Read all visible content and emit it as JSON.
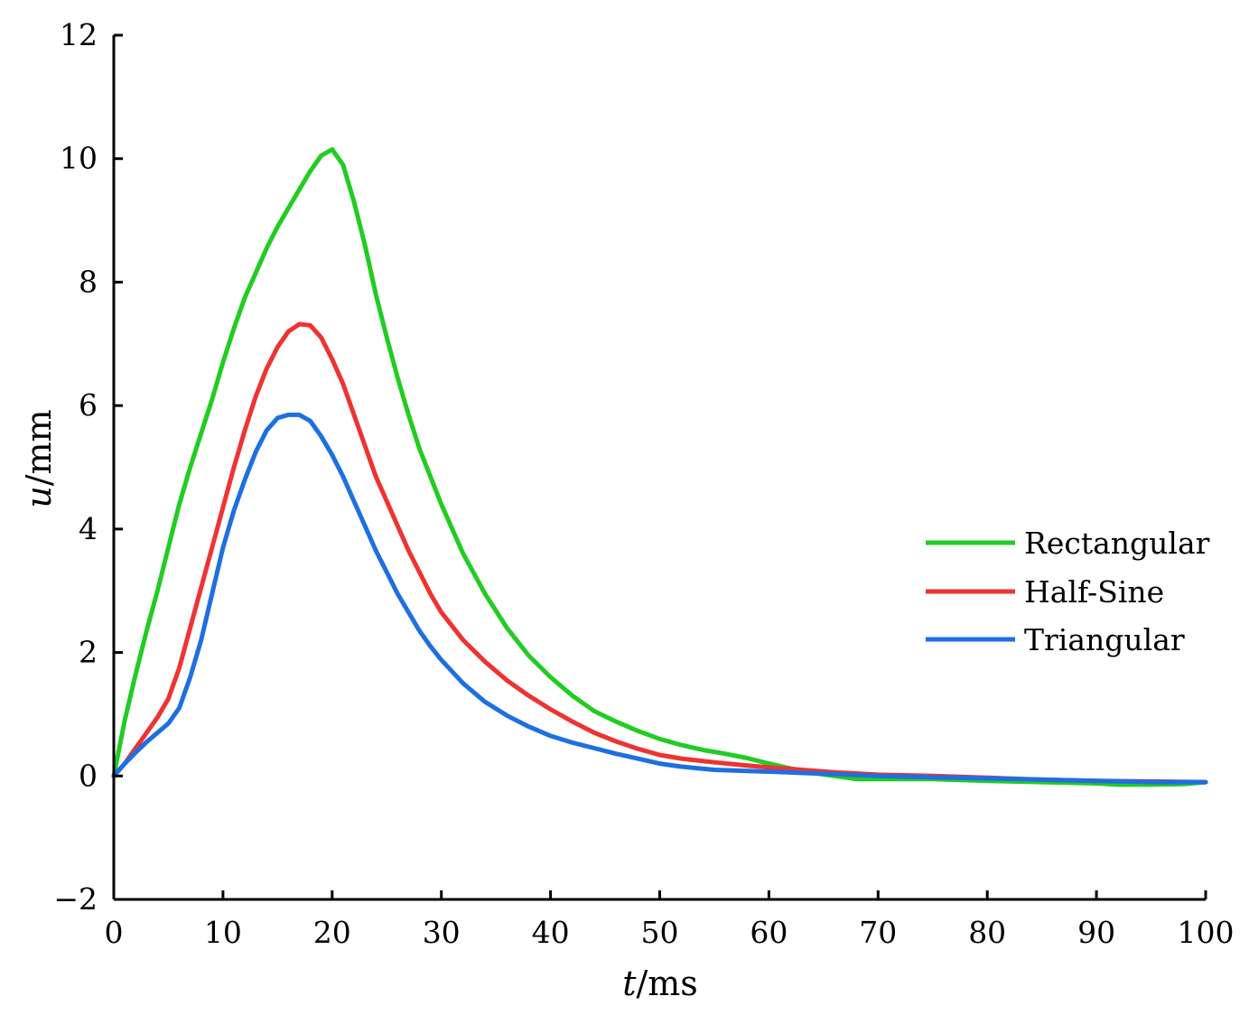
{
  "chart_data": {
    "type": "line",
    "title": "",
    "xlabel": {
      "var": "t",
      "unit": "/ms"
    },
    "ylabel": {
      "var": "u",
      "unit": "/mm"
    },
    "xlim": [
      0,
      100
    ],
    "ylim": [
      -2,
      12
    ],
    "xticks": [
      0,
      10,
      20,
      30,
      40,
      50,
      60,
      70,
      80,
      90,
      100
    ],
    "yticks": [
      -2,
      0,
      2,
      4,
      6,
      8,
      10,
      12
    ],
    "ytick_labels": [
      "−2",
      "0",
      "2",
      "4",
      "6",
      "8",
      "10",
      "12"
    ],
    "grid": false,
    "legend_position": "right",
    "series": [
      {
        "name": "Rectangular",
        "color": "#22cc22",
        "x": [
          0,
          1,
          2,
          3,
          4,
          5,
          6,
          7,
          8,
          9,
          10,
          11,
          12,
          13,
          14,
          15,
          16,
          17,
          18,
          19,
          20,
          21,
          22,
          23,
          24,
          25,
          26,
          27,
          28,
          29,
          30,
          32,
          34,
          36,
          38,
          40,
          42,
          44,
          46,
          48,
          50,
          52,
          54,
          56,
          58,
          60,
          62,
          64,
          66,
          68,
          70,
          75,
          80,
          85,
          90,
          92,
          95,
          98,
          100
        ],
        "y": [
          0,
          0.9,
          1.65,
          2.35,
          3.0,
          3.7,
          4.4,
          5.0,
          5.55,
          6.1,
          6.7,
          7.25,
          7.75,
          8.15,
          8.55,
          8.9,
          9.2,
          9.5,
          9.8,
          10.05,
          10.15,
          9.9,
          9.3,
          8.6,
          7.8,
          7.1,
          6.45,
          5.85,
          5.3,
          4.85,
          4.4,
          3.6,
          2.95,
          2.4,
          1.95,
          1.6,
          1.3,
          1.05,
          0.88,
          0.73,
          0.6,
          0.5,
          0.42,
          0.36,
          0.29,
          0.2,
          0.12,
          0.05,
          0.0,
          -0.05,
          -0.05,
          -0.05,
          -0.08,
          -0.1,
          -0.12,
          -0.14,
          -0.14,
          -0.13,
          -0.1
        ]
      },
      {
        "name": "Half-Sine",
        "color": "#ee3333",
        "x": [
          0,
          1,
          2,
          3,
          4,
          5,
          6,
          7,
          8,
          9,
          10,
          11,
          12,
          13,
          14,
          15,
          16,
          17,
          18,
          19,
          20,
          21,
          22,
          23,
          24,
          25,
          26,
          27,
          28,
          29,
          30,
          32,
          34,
          36,
          38,
          40,
          42,
          44,
          46,
          48,
          50,
          52,
          55,
          58,
          60,
          63,
          66,
          70,
          75,
          80,
          85,
          90,
          95,
          100
        ],
        "y": [
          0,
          0.2,
          0.45,
          0.7,
          0.95,
          1.25,
          1.75,
          2.4,
          3.05,
          3.7,
          4.35,
          5.0,
          5.6,
          6.15,
          6.6,
          6.95,
          7.2,
          7.32,
          7.3,
          7.1,
          6.75,
          6.35,
          5.85,
          5.35,
          4.85,
          4.45,
          4.05,
          3.65,
          3.3,
          2.95,
          2.65,
          2.2,
          1.85,
          1.55,
          1.3,
          1.08,
          0.88,
          0.7,
          0.56,
          0.44,
          0.34,
          0.28,
          0.22,
          0.17,
          0.14,
          0.1,
          0.06,
          0.02,
          0.0,
          -0.03,
          -0.06,
          -0.08,
          -0.09,
          -0.1
        ]
      },
      {
        "name": "Triangular",
        "color": "#1e6fe0",
        "x": [
          0,
          1,
          2,
          3,
          4,
          5,
          6,
          7,
          8,
          9,
          10,
          11,
          12,
          13,
          14,
          15,
          16,
          17,
          18,
          19,
          20,
          21,
          22,
          23,
          24,
          25,
          26,
          27,
          28,
          29,
          30,
          32,
          34,
          36,
          38,
          40,
          42,
          44,
          46,
          48,
          50,
          52,
          55,
          58,
          60,
          63,
          66,
          70,
          75,
          80,
          85,
          90,
          95,
          100
        ],
        "y": [
          0,
          0.2,
          0.38,
          0.55,
          0.7,
          0.85,
          1.1,
          1.6,
          2.2,
          2.95,
          3.7,
          4.3,
          4.8,
          5.25,
          5.6,
          5.8,
          5.85,
          5.85,
          5.75,
          5.5,
          5.2,
          4.85,
          4.45,
          4.05,
          3.65,
          3.3,
          2.95,
          2.65,
          2.35,
          2.1,
          1.88,
          1.5,
          1.2,
          0.98,
          0.8,
          0.65,
          0.54,
          0.45,
          0.36,
          0.28,
          0.2,
          0.15,
          0.1,
          0.08,
          0.07,
          0.05,
          0.03,
          0.0,
          -0.02,
          -0.04,
          -0.06,
          -0.08,
          -0.1,
          -0.1
        ]
      }
    ]
  }
}
